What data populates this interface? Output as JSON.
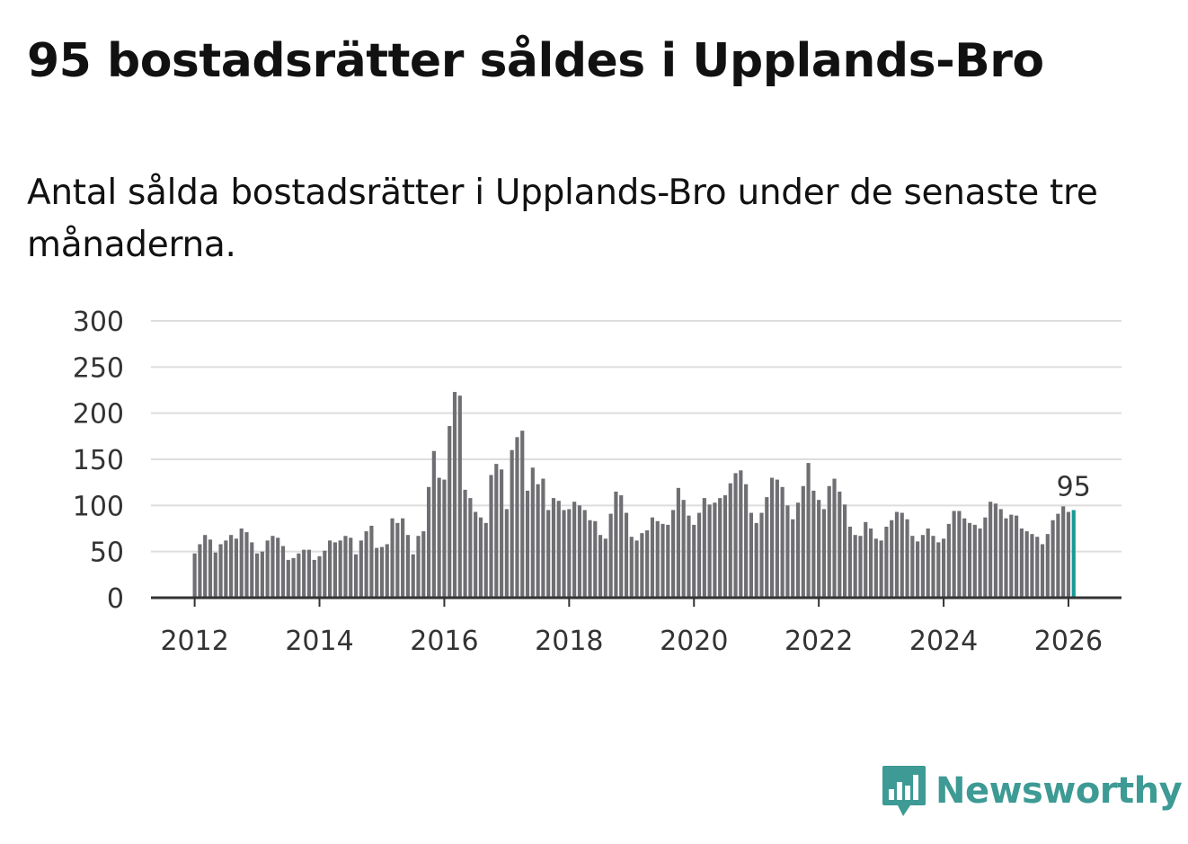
{
  "title": "95 bostadsrätter såldes i Upplands-Bro",
  "subtitle": "Antal sålda bostadsrätter i Upplands-Bro under de senaste tre månaderna.",
  "logo": {
    "icon": "newsworthy-chart-bubble-icon",
    "text": "Newsworthy"
  },
  "colors": {
    "bar": "#6f6e72",
    "highlight": "#1a9a96",
    "grid": "#dddddd",
    "axis": "#333333",
    "brand": "#3d9a94"
  },
  "chart_data": {
    "type": "bar",
    "title": "",
    "xlabel": "",
    "ylabel": "",
    "ylim": [
      0,
      300
    ],
    "yticks": [
      0,
      50,
      100,
      150,
      200,
      250,
      300
    ],
    "xlim": [
      2011.3,
      2026.85
    ],
    "xticks": [
      2012,
      2014,
      2016,
      2018,
      2020,
      2022,
      2024,
      2026
    ],
    "start": {
      "year": 2012,
      "month": 1
    },
    "values": [
      48,
      58,
      68,
      63,
      49,
      58,
      62,
      68,
      64,
      75,
      71,
      60,
      48,
      50,
      62,
      67,
      65,
      56,
      41,
      43,
      48,
      52,
      52,
      41,
      45,
      51,
      62,
      60,
      62,
      67,
      65,
      47,
      62,
      72,
      78,
      54,
      55,
      58,
      86,
      81,
      86,
      68,
      47,
      67,
      72,
      120,
      159,
      130,
      128,
      186,
      223,
      219,
      117,
      108,
      93,
      87,
      81,
      133,
      145,
      139,
      96,
      160,
      174,
      181,
      116,
      141,
      123,
      129,
      95,
      108,
      105,
      95,
      96,
      104,
      100,
      95,
      84,
      83,
      68,
      64,
      91,
      115,
      111,
      92,
      66,
      62,
      70,
      73,
      87,
      83,
      80,
      79,
      95,
      119,
      106,
      89,
      79,
      92,
      108,
      101,
      103,
      108,
      111,
      124,
      135,
      138,
      123,
      92,
      81,
      92,
      109,
      130,
      128,
      120,
      100,
      85,
      103,
      121,
      146,
      116,
      106,
      96,
      121,
      129,
      115,
      101,
      77,
      68,
      67,
      82,
      75,
      64,
      62,
      77,
      84,
      93,
      92,
      85,
      67,
      61,
      68,
      75,
      67,
      60,
      64,
      80,
      94,
      94,
      86,
      81,
      79,
      75,
      87,
      104,
      102,
      96,
      86,
      90,
      89,
      75,
      72,
      69,
      66,
      58,
      69,
      84,
      91,
      99,
      93,
      95
    ],
    "highlight_last": true,
    "annotation": {
      "label": "95"
    }
  }
}
